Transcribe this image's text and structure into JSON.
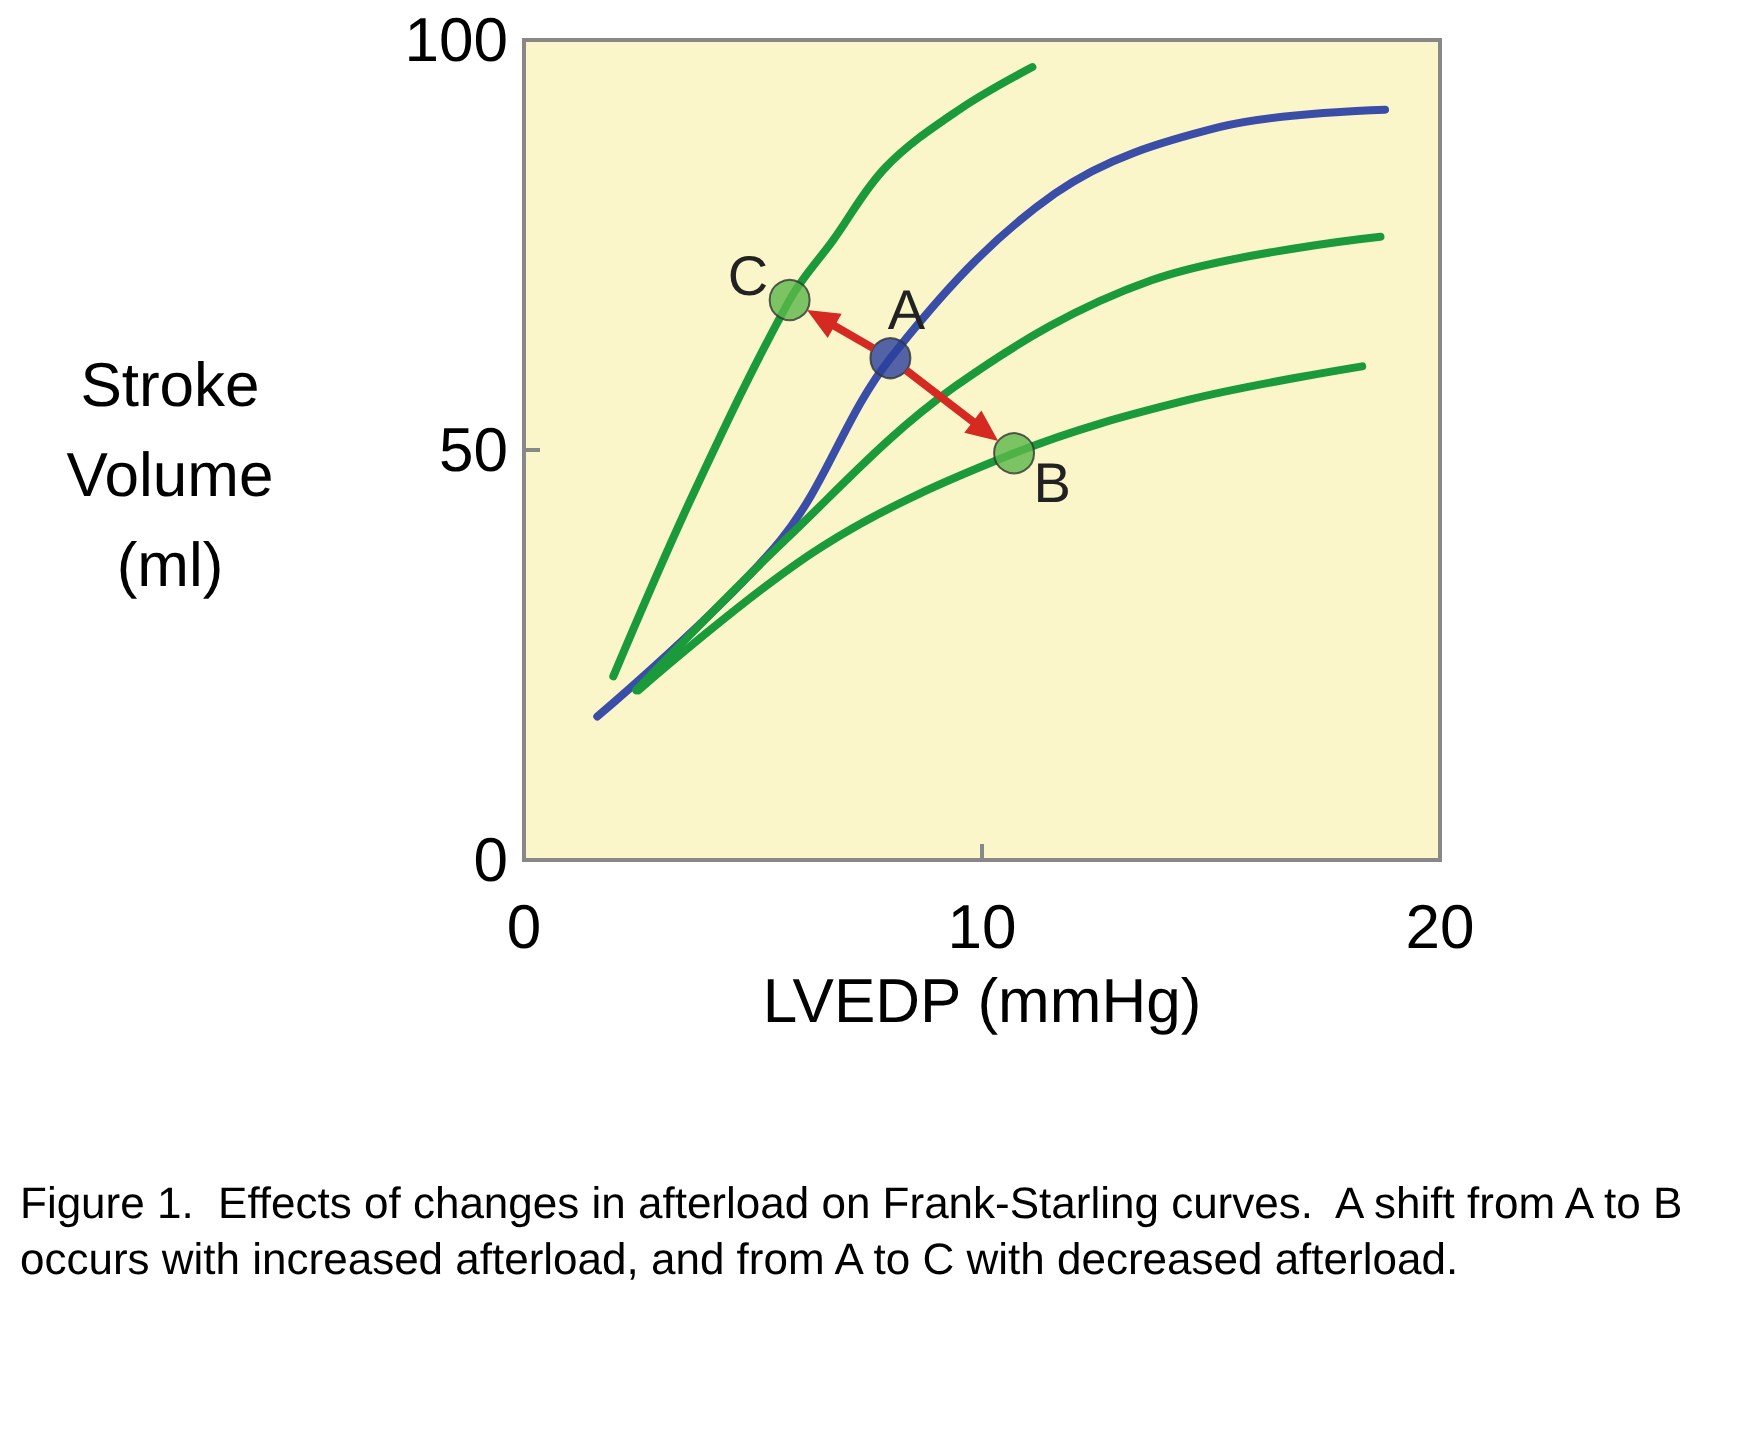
{
  "chart_data": {
    "type": "line",
    "xlabel": "LVEDP (mmHg)",
    "ylabel": "Stroke\nVolume\n(ml)",
    "xlim": [
      0,
      20
    ],
    "xticks": [
      0,
      10,
      20
    ],
    "ylim": [
      0,
      100
    ],
    "yticks": [
      0,
      50,
      100
    ],
    "grid": false,
    "marker": "none",
    "series": [
      {
        "color": "#1a9a3a",
        "x": [
          1.95,
          3.7,
          5.8,
          6.75,
          7.9,
          9.5,
          11.1
        ],
        "values": [
          22.4,
          44.7,
          68.3,
          75.6,
          84.5,
          91.5,
          96.7
        ]
      },
      {
        "color": "#3a4ea8",
        "x": [
          1.6,
          5.6,
          8.0,
          11.6,
          15.2,
          18.8
        ],
        "values": [
          17.5,
          39,
          61.2,
          81.3,
          89.4,
          91.5
        ]
      },
      {
        "color": "#1a9a3a",
        "x": [
          2.45,
          5.7,
          9.4,
          13.7,
          18.7
        ],
        "values": [
          20.7,
          39,
          57.7,
          70.7,
          76
        ]
      },
      {
        "color": "#1a9a3a",
        "x": [
          2.5,
          6.5,
          10.7,
          14.5,
          18.3
        ],
        "values": [
          20.7,
          38.2,
          49.6,
          56.1,
          60.2
        ]
      },
      {
        "type": "scatter",
        "marker": "circle",
        "x": [
          8.0,
          10.7,
          5.8
        ],
        "values": [
          61.2,
          49.6,
          68.3
        ],
        "colors": [
          "#2b3f9c",
          "#5cb84a",
          "#5cb84a"
        ]
      }
    ],
    "annotations": [
      {
        "text": "A",
        "x": 8.0,
        "y": 61.2
      },
      {
        "text": "B",
        "x": 10.7,
        "y": 49.6
      },
      {
        "text": "C",
        "x": 5.8,
        "y": 68.3
      },
      "Figure 1.  Effects of changes in afterload on Frank-Starling curves.  A shift from A to B occurs with increased afterload, and from A to C with decreased afterload."
    ]
  }
}
